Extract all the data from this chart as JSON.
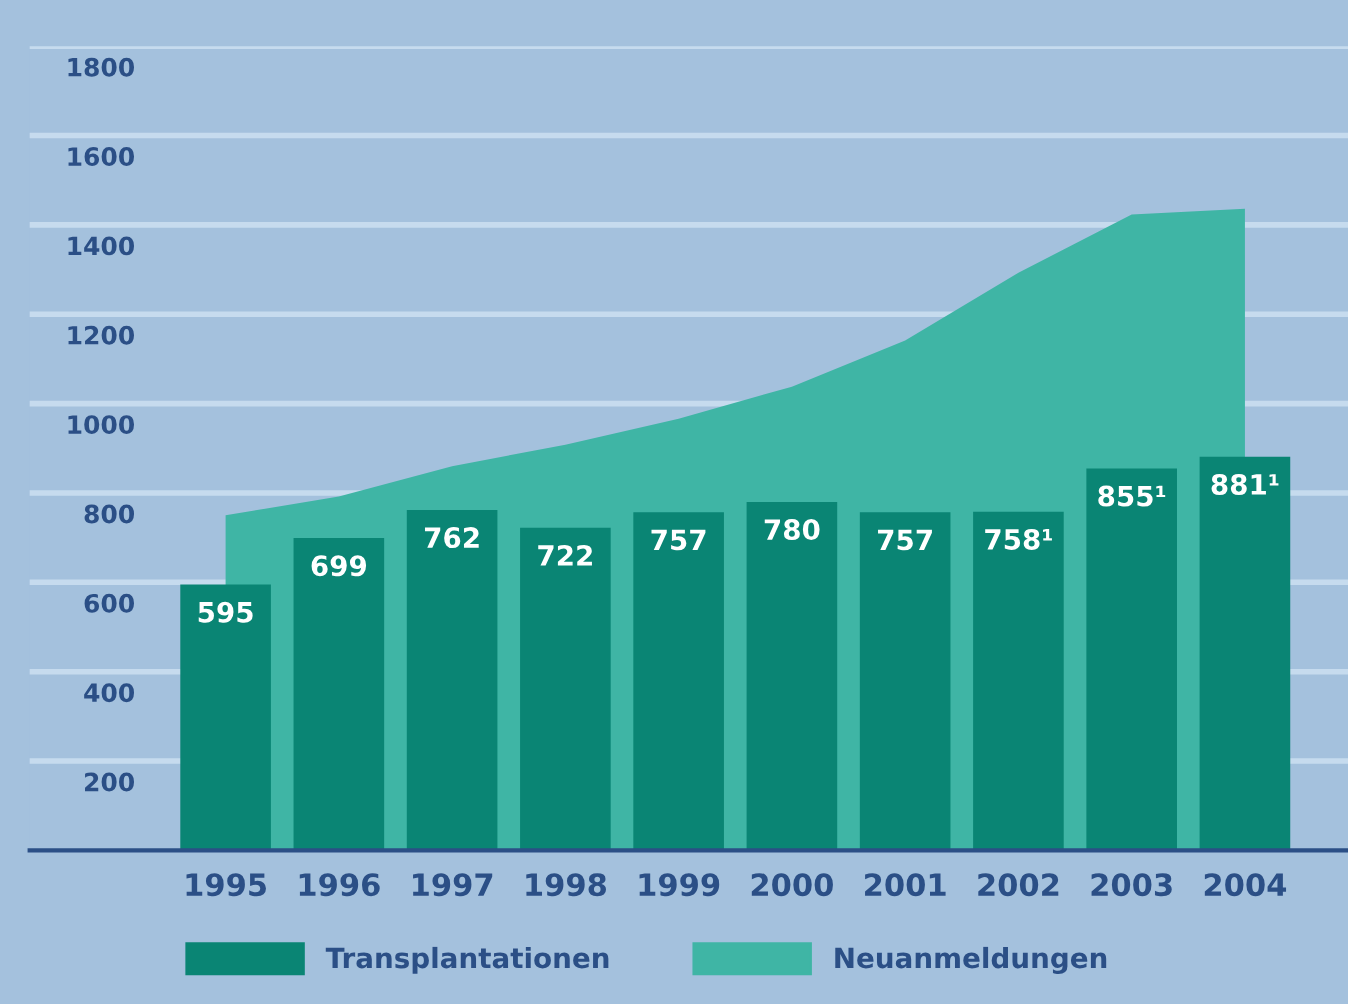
{
  "chart_data": {
    "type": "bar",
    "categories": [
      "1995",
      "1996",
      "1997",
      "1998",
      "1999",
      "2000",
      "2001",
      "2002",
      "2003",
      "2004"
    ],
    "series": [
      {
        "name": "Neuanmeldungen",
        "type": "area",
        "color": "#3fb5a5",
        "values": [
          750,
          792,
          860,
          908,
          966,
          1038,
          1141,
          1293,
          1423,
          1436
        ]
      },
      {
        "name": "Transplantationen",
        "color": "#0a8574",
        "values": [
          595,
          699,
          762,
          722,
          757,
          780,
          757,
          758,
          855,
          881
        ],
        "value_labels": [
          "595",
          "699",
          "762",
          "722",
          "757",
          "780",
          "757",
          "758¹",
          "855¹",
          "881¹"
        ]
      }
    ],
    "ylim": [
      0,
      1800
    ],
    "yticks": [
      200,
      400,
      600,
      800,
      1000,
      1200,
      1400,
      1600,
      1800
    ],
    "grid": "y",
    "legend": "bottom"
  }
}
